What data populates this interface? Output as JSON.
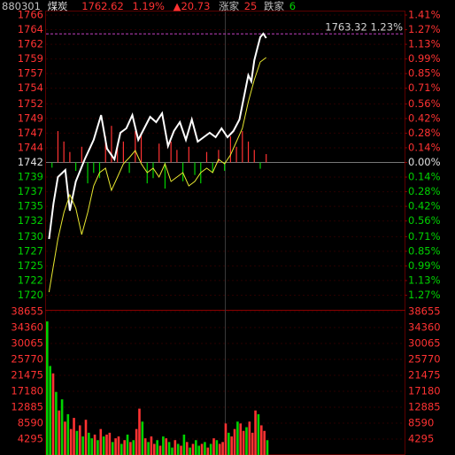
{
  "chart_data": {
    "type": "intraday",
    "header": {
      "code": "880301",
      "name": "煤炭",
      "price": "1762.62",
      "change_pct": "1.19%",
      "change": "▲20.73",
      "up_label": "涨家",
      "up_count": "25",
      "down_label": "跌家",
      "down_count": "6"
    },
    "annotation": {
      "text": "1763.32 1.23%",
      "value": 1763.32,
      "color": "#c040c0"
    },
    "xlim": [
      0,
      241
    ],
    "ylim": [
      1717.33,
      1766.45
    ],
    "yticks": [
      {
        "value": 1766.45,
        "label": "1766"
      },
      {
        "value": 1764.01,
        "label": "1764"
      },
      {
        "value": 1761.57,
        "label": "1762"
      },
      {
        "value": 1759.13,
        "label": "1759"
      },
      {
        "value": 1756.7,
        "label": "1757"
      },
      {
        "value": 1754.26,
        "label": "1754"
      },
      {
        "value": 1751.64,
        "label": "1752"
      },
      {
        "value": 1749.21,
        "label": "1749"
      },
      {
        "value": 1746.77,
        "label": "1747"
      },
      {
        "value": 1744.33,
        "label": "1744"
      },
      {
        "value": 1741.89,
        "label": "1742"
      },
      {
        "value": 1739.45,
        "label": "1739"
      },
      {
        "value": 1737.01,
        "label": "1737"
      },
      {
        "value": 1734.57,
        "label": "1735"
      },
      {
        "value": 1732.14,
        "label": "1732"
      },
      {
        "value": 1729.52,
        "label": "1730"
      },
      {
        "value": 1727.08,
        "label": "1727"
      },
      {
        "value": 1724.65,
        "label": "1725"
      },
      {
        "value": 1722.21,
        "label": "1722"
      },
      {
        "value": 1719.77,
        "label": "1720"
      }
    ],
    "y2lim": [
      -1.41,
      1.41
    ],
    "y2ticks": [
      {
        "value": 1.41,
        "label": "1.41%"
      },
      {
        "value": 1.27,
        "label": "1.27%"
      },
      {
        "value": 1.13,
        "label": "1.13%"
      },
      {
        "value": 0.99,
        "label": "0.99%"
      },
      {
        "value": 0.85,
        "label": "0.85%"
      },
      {
        "value": 0.71,
        "label": "0.71%"
      },
      {
        "value": 0.56,
        "label": "0.56%"
      },
      {
        "value": 0.42,
        "label": "0.42%"
      },
      {
        "value": 0.28,
        "label": "0.28%"
      },
      {
        "value": 0.14,
        "label": "0.14%"
      },
      {
        "value": 0,
        "label": "0.00%"
      },
      {
        "value": -0.14,
        "label": "0.14%"
      },
      {
        "value": -0.28,
        "label": "0.28%"
      },
      {
        "value": -0.42,
        "label": "0.42%"
      },
      {
        "value": -0.56,
        "label": "0.56%"
      },
      {
        "value": -0.71,
        "label": "0.71%"
      },
      {
        "value": -0.85,
        "label": "0.85%"
      },
      {
        "value": -0.99,
        "label": "0.99%"
      },
      {
        "value": -1.13,
        "label": "1.13%"
      },
      {
        "value": -1.27,
        "label": "1.27%"
      }
    ],
    "up_color": "#ff3232",
    "down_color": "#00d200",
    "series": [
      {
        "color": "#ffffff",
        "x": [
          2,
          5,
          8,
          13,
          16,
          20,
          26,
          32,
          37,
          41,
          46,
          50,
          54,
          58,
          62,
          66,
          70,
          74,
          78,
          82,
          86,
          90,
          94,
          98,
          102,
          106,
          110,
          114,
          118,
          122,
          126,
          130,
          133,
          136,
          138,
          140,
          142,
          144,
          146,
          148
        ],
        "values": [
          1729.13,
          1735.03,
          1739.46,
          1740.64,
          1733.85,
          1738.72,
          1742.41,
          1745.65,
          1749.78,
          1744.18,
          1742.41,
          1746.83,
          1747.57,
          1749.78,
          1745.65,
          1747.57,
          1749.49,
          1748.6,
          1750.08,
          1744.62,
          1747.13,
          1748.6,
          1745.65,
          1749.04,
          1745.36,
          1746.09,
          1746.83,
          1746.09,
          1747.57,
          1746.09,
          1747.13,
          1749.04,
          1752.73,
          1756.42,
          1755.39,
          1758.93,
          1760.85,
          1762.76,
          1763.35,
          1762.62
        ]
      },
      {
        "color": "#e8e830",
        "x": [
          2,
          4,
          8,
          12,
          16,
          20,
          24,
          28,
          32,
          36,
          40,
          44,
          48,
          52,
          56,
          60,
          64,
          68,
          72,
          76,
          80,
          84,
          88,
          92,
          96,
          100,
          104,
          108,
          112,
          116,
          120,
          124,
          128,
          132,
          136,
          140,
          144,
          148
        ],
        "values": [
          1720.28,
          1723.23,
          1729.13,
          1733.56,
          1736.51,
          1734.29,
          1729.87,
          1733.56,
          1737.98,
          1740.19,
          1740.93,
          1737.24,
          1739.46,
          1741.67,
          1742.7,
          1743.88,
          1741.67,
          1740.19,
          1740.93,
          1739.46,
          1741.67,
          1738.72,
          1739.46,
          1740.19,
          1737.98,
          1738.72,
          1740.19,
          1740.93,
          1740.19,
          1742.41,
          1741.67,
          1743.14,
          1745.36,
          1747.57,
          1751.99,
          1755.68,
          1758.63,
          1759.37
        ]
      }
    ],
    "power": {
      "x": [
        4,
        8,
        12,
        16,
        20,
        24,
        28,
        32,
        36,
        40,
        44,
        48,
        52,
        56,
        60,
        64,
        68,
        72,
        76,
        80,
        84,
        88,
        92,
        96,
        100,
        104,
        108,
        112,
        116,
        120,
        124,
        128,
        132,
        136,
        140,
        144,
        148
      ],
      "values": [
        -0.05,
        0.3,
        0.2,
        0.1,
        -0.08,
        0.15,
        -0.2,
        -0.1,
        -0.15,
        0.25,
        0.35,
        0.15,
        0.2,
        -0.1,
        0.3,
        0.28,
        -0.2,
        -0.15,
        0.18,
        -0.25,
        0.2,
        0.12,
        -0.18,
        0.15,
        -0.12,
        -0.2,
        0.1,
        -0.1,
        0.12,
        -0.08,
        0.25,
        0.15,
        0.3,
        0.2,
        0.12,
        -0.06,
        0.08
      ]
    },
    "volume": {
      "ylim": [
        0,
        38655
      ],
      "yticks": [
        38655,
        34360,
        30065,
        25770,
        21475,
        17180,
        12885,
        8590,
        4295
      ],
      "x": [
        0,
        2,
        4,
        6,
        8,
        10,
        12,
        14,
        16,
        18,
        20,
        22,
        24,
        26,
        28,
        30,
        32,
        34,
        36,
        38,
        40,
        42,
        44,
        46,
        48,
        50,
        52,
        54,
        56,
        58,
        60,
        62,
        64,
        66,
        68,
        70,
        72,
        74,
        76,
        78,
        80,
        82,
        84,
        86,
        88,
        90,
        92,
        94,
        96,
        98,
        100,
        102,
        104,
        106,
        108,
        110,
        112,
        114,
        116,
        118,
        120,
        122,
        124,
        126,
        128,
        130,
        132,
        134,
        136,
        138,
        140,
        142,
        144,
        146,
        148
      ],
      "values": [
        36000,
        24000,
        22000,
        17000,
        12000,
        15000,
        9000,
        11000,
        7000,
        10000,
        6500,
        8000,
        5000,
        9500,
        6000,
        4500,
        5500,
        4000,
        7000,
        5000,
        5500,
        6000,
        3500,
        4500,
        5000,
        3000,
        4000,
        5500,
        3500,
        4000,
        7000,
        12500,
        9000,
        4500,
        3500,
        5000,
        3000,
        4000,
        2500,
        5000,
        4500,
        3500,
        2000,
        4000,
        3000,
        2500,
        5500,
        3500,
        2000,
        3000,
        4000,
        2500,
        3000,
        3500,
        2000,
        3000,
        4500,
        4000,
        3000,
        3500,
        8500,
        6000,
        5000,
        7000,
        9000,
        8500,
        6500,
        7500,
        9000,
        6000,
        12000,
        11000,
        8000,
        6500,
        4000
      ],
      "colors": [
        "#00d200",
        "#00d200",
        "#ff3232",
        "#00d200",
        "#ff3232",
        "#00d200",
        "#ff3232",
        "#00d200",
        "#ff3232",
        "#ff3232",
        "#00d200",
        "#ff3232",
        "#00d200",
        "#ff3232",
        "#00d200",
        "#00d200",
        "#ff3232",
        "#00d200",
        "#ff3232",
        "#00d200",
        "#ff3232",
        "#ff3232",
        "#00d200",
        "#ff3232",
        "#ff3232",
        "#00d200",
        "#ff3232",
        "#00d200",
        "#ff3232",
        "#00d200",
        "#ff3232",
        "#ff3232",
        "#00d200",
        "#ff3232",
        "#00d200",
        "#ff3232",
        "#ff3232",
        "#00d200",
        "#ff3232",
        "#00d200",
        "#ff3232",
        "#00d200",
        "#00d200",
        "#ff3232",
        "#00d200",
        "#ff3232",
        "#00d200",
        "#ff3232",
        "#00d200",
        "#ff3232",
        "#00d200",
        "#00d200",
        "#ff3232",
        "#00d200",
        "#ff3232",
        "#00d200",
        "#ff3232",
        "#00d200",
        "#ff3232",
        "#ff3232",
        "#ff3232",
        "#00d200",
        "#ff3232",
        "#ff3232",
        "#00d200",
        "#ff3232",
        "#ff3232",
        "#00d200",
        "#ff3232",
        "#ff3232",
        "#ff3232",
        "#00d200",
        "#ff3232",
        "#ff3232",
        "#00d200"
      ]
    }
  }
}
